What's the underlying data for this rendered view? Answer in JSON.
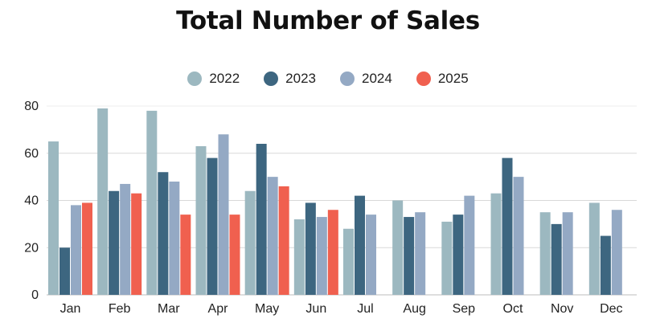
{
  "chart_data": {
    "type": "bar",
    "title": "Total Number of Sales",
    "xlabel": "",
    "ylabel": "",
    "ylim": [
      0,
      80
    ],
    "yticks": [
      0,
      20,
      40,
      60,
      80
    ],
    "grid": true,
    "legend_position": "top-center",
    "categories": [
      "Jan",
      "Feb",
      "Mar",
      "Apr",
      "May",
      "Jun",
      "Jul",
      "Aug",
      "Sep",
      "Oct",
      "Nov",
      "Dec"
    ],
    "series": [
      {
        "name": "2022",
        "color": "#9cb8c0",
        "values": [
          65,
          79,
          78,
          63,
          44,
          32,
          28,
          40,
          31,
          43,
          35,
          39
        ]
      },
      {
        "name": "2023",
        "color": "#3d6680",
        "values": [
          20,
          44,
          52,
          58,
          64,
          39,
          42,
          33,
          34,
          58,
          30,
          25
        ]
      },
      {
        "name": "2024",
        "color": "#94a9c4",
        "values": [
          38,
          47,
          48,
          68,
          50,
          33,
          34,
          35,
          42,
          50,
          35,
          36
        ]
      },
      {
        "name": "2025",
        "color": "#f0604f",
        "values": [
          39,
          43,
          34,
          34,
          46,
          36,
          null,
          null,
          null,
          null,
          null,
          null
        ]
      }
    ]
  }
}
